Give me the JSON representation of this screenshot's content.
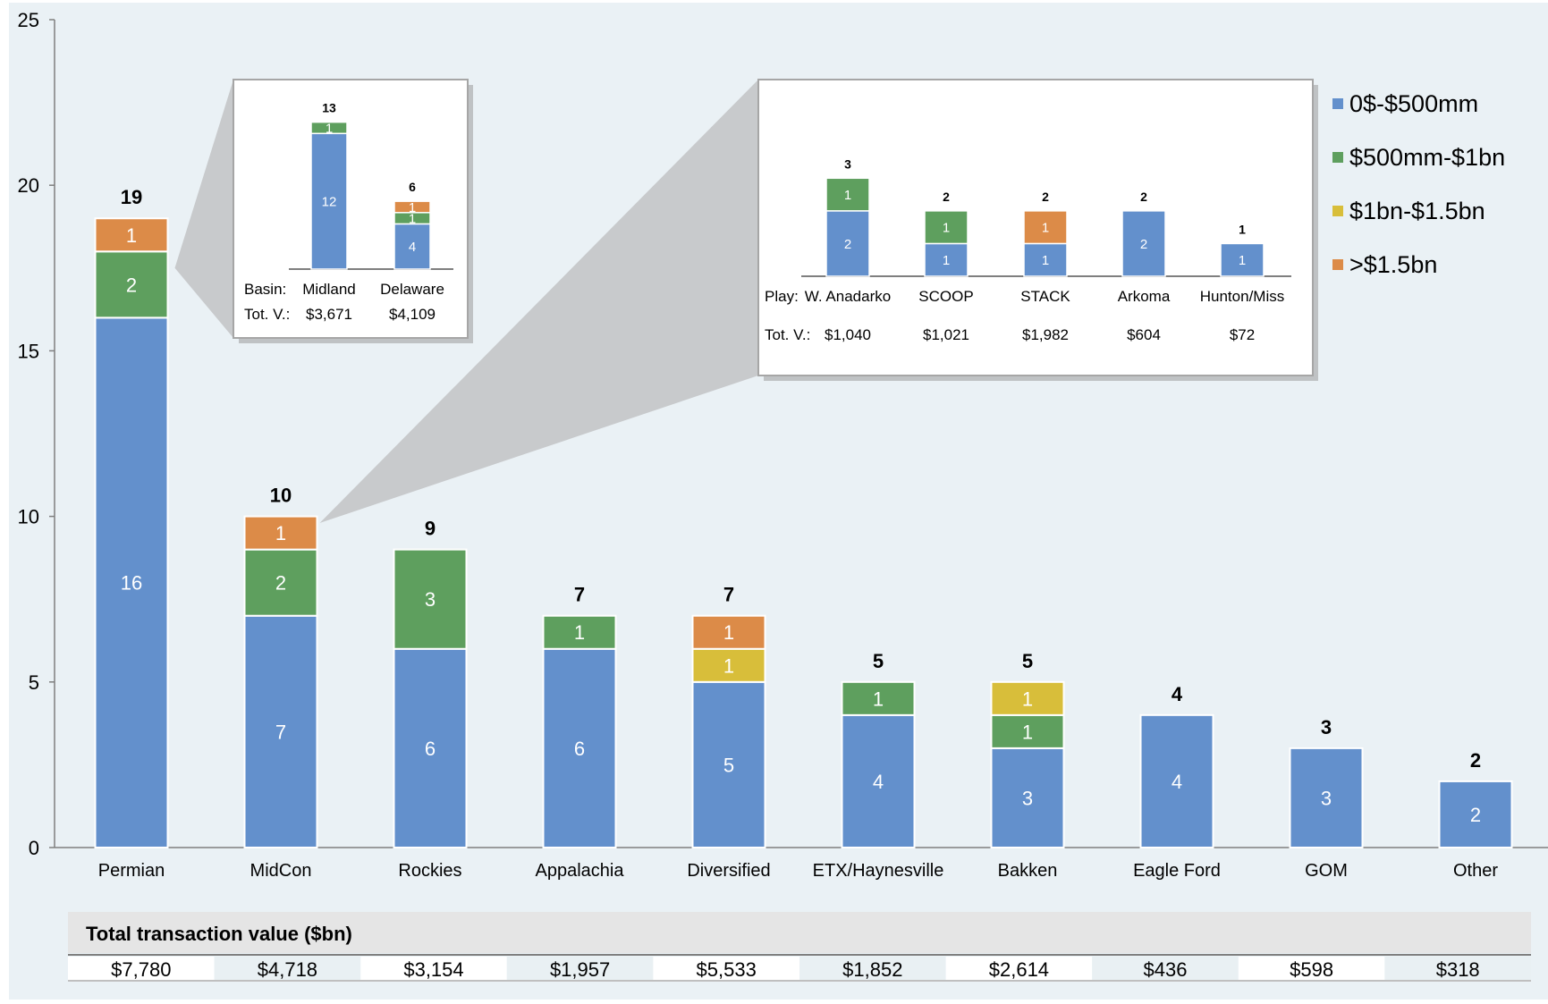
{
  "colors": {
    "background": "#eaf1f5",
    "blue": "#6390cc",
    "green": "#5e9f5e",
    "yellow": "#d8be3a",
    "orange": "#dc8b48",
    "axis": "#7f7f7f",
    "inset_bg": "#ffffff",
    "zoom_shape": "#c8cacc"
  },
  "chart_data": {
    "type": "bar",
    "stacked": true,
    "categories": [
      "Permian",
      "MidCon",
      "Rockies",
      "Appalachia",
      "Diversified",
      "ETX/Haynesville",
      "Bakken",
      "Eagle Ford",
      "GOM",
      "Other"
    ],
    "totals": [
      19,
      10,
      9,
      7,
      7,
      5,
      5,
      4,
      3,
      2
    ],
    "series": [
      {
        "name": "0$-$500mm",
        "color": "#6390cc",
        "values": [
          16,
          7,
          6,
          6,
          5,
          4,
          3,
          4,
          3,
          2
        ]
      },
      {
        "name": "$500mm-$1bn",
        "color": "#5e9f5e",
        "values": [
          2,
          2,
          3,
          1,
          0,
          1,
          1,
          0,
          0,
          0
        ]
      },
      {
        "name": "$1bn-$1.5bn",
        "color": "#d8be3a",
        "values": [
          0,
          0,
          0,
          0,
          1,
          0,
          1,
          0,
          0,
          0
        ]
      },
      {
        "name": ">$1.5bn",
        "color": "#dc8b48",
        "values": [
          1,
          1,
          0,
          0,
          1,
          0,
          0,
          0,
          0,
          0
        ]
      }
    ],
    "ylim": [
      0,
      25
    ],
    "yticks": [
      "0",
      "5",
      "10",
      "15",
      "20",
      "25"
    ],
    "legend_position": "top-right",
    "grid": false,
    "table": {
      "title": "Total transaction value ($bn)",
      "values": [
        "$7,780",
        "$4,718",
        "$3,154",
        "$1,957",
        "$5,533",
        "$1,852",
        "$2,614",
        "$436",
        "$598",
        "$318"
      ]
    },
    "insets": [
      {
        "source_category": "Permian",
        "ymax": 14,
        "row_labels": [
          "Basin:",
          "Tot. V.:"
        ],
        "categories": [
          "Midland",
          "Delaware"
        ],
        "totals": [
          13,
          6
        ],
        "values_text": [
          "$3,671",
          "$4,109"
        ],
        "stacks": [
          [
            {
              "series": 0,
              "value": 12
            },
            {
              "series": 1,
              "value": 1
            }
          ],
          [
            {
              "series": 0,
              "value": 4
            },
            {
              "series": 1,
              "value": 1
            },
            {
              "series": 3,
              "value": 1
            }
          ]
        ]
      },
      {
        "source_category": "MidCon",
        "ymax": 3.5,
        "row_labels": [
          "Play:",
          "Tot. V.:"
        ],
        "categories": [
          "W. Anadarko",
          "SCOOP",
          "STACK",
          "Arkoma",
          "Hunton/Miss"
        ],
        "totals": [
          3,
          2,
          2,
          2,
          1
        ],
        "values_text": [
          "$1,040",
          "$1,021",
          "$1,982",
          "$604",
          "$72"
        ],
        "stacks": [
          [
            {
              "series": 0,
              "value": 2
            },
            {
              "series": 1,
              "value": 1
            }
          ],
          [
            {
              "series": 0,
              "value": 1
            },
            {
              "series": 1,
              "value": 1
            }
          ],
          [
            {
              "series": 0,
              "value": 1
            },
            {
              "series": 3,
              "value": 1
            }
          ],
          [
            {
              "series": 0,
              "value": 2
            }
          ],
          [
            {
              "series": 0,
              "value": 1
            }
          ]
        ]
      }
    ]
  }
}
